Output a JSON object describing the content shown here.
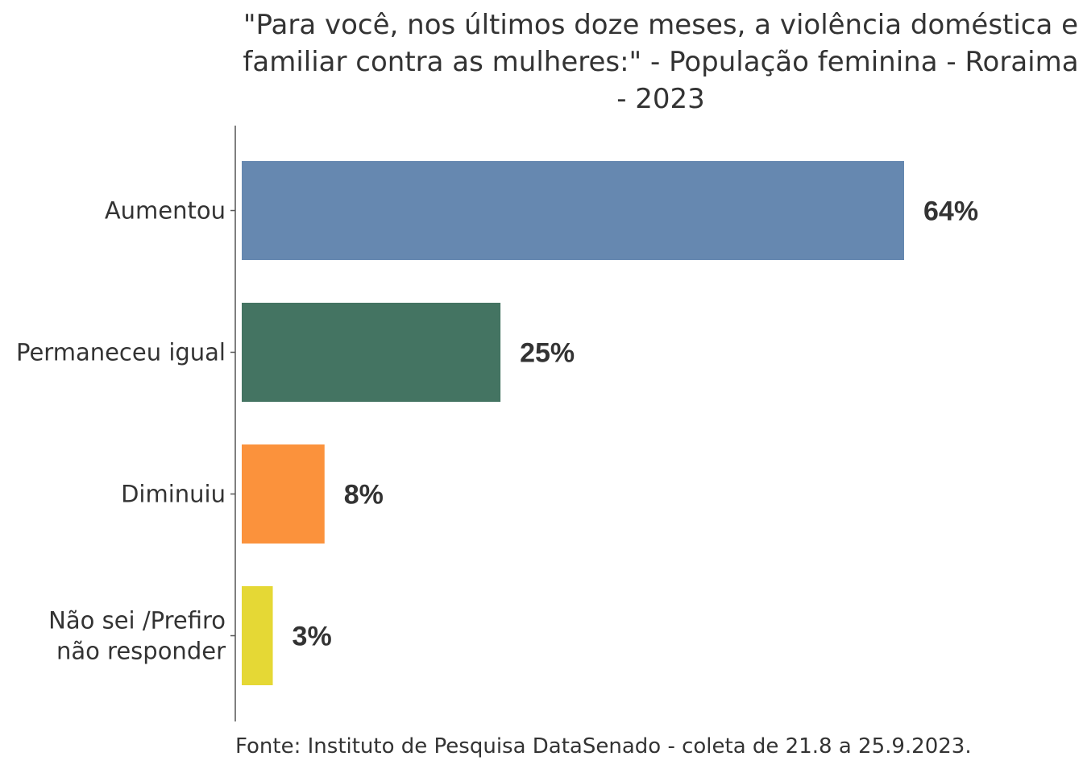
{
  "chart_data": {
    "type": "bar",
    "orientation": "horizontal",
    "title_lines": [
      "\"Para você, nos últimos doze meses, a violência doméstica e",
      "familiar contra as mulheres:\" - População feminina - Roraima",
      "- 2023"
    ],
    "categories": [
      [
        "Aumentou"
      ],
      [
        "Permaneceu igual"
      ],
      [
        "Diminuiu"
      ],
      [
        "Não sei /Prefiro",
        "não responder"
      ]
    ],
    "values": [
      64,
      25,
      8,
      3
    ],
    "value_labels": [
      "64%",
      "25%",
      "8%",
      "3%"
    ],
    "colors": [
      "#6688b0",
      "#447462",
      "#fb923c",
      "#e5d835"
    ],
    "xlim": [
      0,
      64
    ],
    "grid": false,
    "legend": "none",
    "source": "Fonte: Instituto de Pesquisa DataSenado - coleta de 21.8 a 25.9.2023."
  }
}
